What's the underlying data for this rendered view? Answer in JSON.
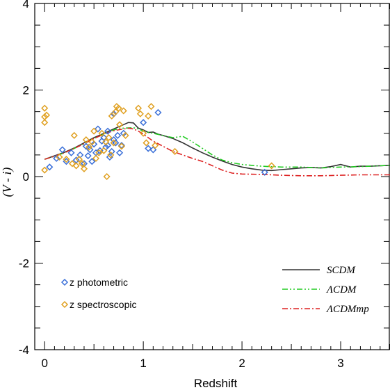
{
  "chart_data": {
    "type": "scatter",
    "title": "",
    "xlabel": "Redshift",
    "ylabel": "(V - i)",
    "xlim": [
      -0.1,
      3.5
    ],
    "ylim": [
      -4,
      4
    ],
    "x_ticks": [
      0,
      1,
      2,
      3
    ],
    "x_tick_labels": [
      "0",
      "1",
      "2",
      "3"
    ],
    "y_ticks": [
      -4,
      -2,
      0,
      2,
      4
    ],
    "y_tick_labels": [
      "-4",
      "-2",
      "0",
      "2",
      "4"
    ],
    "grid": false,
    "scatter_series": [
      {
        "name": "z photometric",
        "color": "#3a6fd8",
        "marker": "diamond-open",
        "points": [
          [
            0.05,
            0.22
          ],
          [
            0.12,
            0.42
          ],
          [
            0.18,
            0.62
          ],
          [
            0.22,
            0.35
          ],
          [
            0.27,
            0.55
          ],
          [
            0.32,
            0.38
          ],
          [
            0.36,
            0.5
          ],
          [
            0.4,
            0.3
          ],
          [
            0.42,
            0.7
          ],
          [
            0.44,
            0.48
          ],
          [
            0.46,
            0.62
          ],
          [
            0.48,
            0.35
          ],
          [
            0.5,
            0.75
          ],
          [
            0.52,
            0.55
          ],
          [
            0.54,
            1.1
          ],
          [
            0.56,
            0.6
          ],
          [
            0.58,
            0.82
          ],
          [
            0.6,
            0.9
          ],
          [
            0.62,
            0.68
          ],
          [
            0.64,
            0.72
          ],
          [
            0.66,
            0.45
          ],
          [
            0.68,
            0.58
          ],
          [
            0.7,
            0.85
          ],
          [
            0.72,
            0.78
          ],
          [
            0.74,
            0.95
          ],
          [
            0.76,
            0.55
          ],
          [
            0.78,
            0.72
          ],
          [
            0.8,
            1.0
          ],
          [
            0.7,
            1.45
          ],
          [
            1.0,
            1.25
          ],
          [
            1.05,
            0.65
          ],
          [
            1.1,
            0.62
          ],
          [
            1.15,
            1.48
          ],
          [
            0.64,
            1.05
          ],
          [
            2.23,
            0.1
          ]
        ]
      },
      {
        "name": "z spectroscopic",
        "color": "#e0a020",
        "marker": "diamond-open",
        "points": [
          [
            0.0,
            1.58
          ],
          [
            0.0,
            1.38
          ],
          [
            0.0,
            1.25
          ],
          [
            0.0,
            0.15
          ],
          [
            0.02,
            1.42
          ],
          [
            0.15,
            0.45
          ],
          [
            0.22,
            0.4
          ],
          [
            0.28,
            0.3
          ],
          [
            0.3,
            0.95
          ],
          [
            0.32,
            0.25
          ],
          [
            0.35,
            0.4
          ],
          [
            0.38,
            0.3
          ],
          [
            0.4,
            0.18
          ],
          [
            0.42,
            0.85
          ],
          [
            0.45,
            0.68
          ],
          [
            0.48,
            0.8
          ],
          [
            0.5,
            1.05
          ],
          [
            0.52,
            0.42
          ],
          [
            0.55,
            0.55
          ],
          [
            0.58,
            1.0
          ],
          [
            0.6,
            0.6
          ],
          [
            0.62,
            0.8
          ],
          [
            0.63,
            0.0
          ],
          [
            0.65,
            0.9
          ],
          [
            0.67,
            0.5
          ],
          [
            0.68,
            1.4
          ],
          [
            0.7,
            0.78
          ],
          [
            0.72,
            1.5
          ],
          [
            0.73,
            1.62
          ],
          [
            0.75,
            1.58
          ],
          [
            0.76,
            1.2
          ],
          [
            0.78,
            0.7
          ],
          [
            0.8,
            1.52
          ],
          [
            0.82,
            0.95
          ],
          [
            0.95,
            1.58
          ],
          [
            0.97,
            1.45
          ],
          [
            1.0,
            1.0
          ],
          [
            1.03,
            0.78
          ],
          [
            1.05,
            1.4
          ],
          [
            1.08,
            1.62
          ],
          [
            1.12,
            0.72
          ],
          [
            1.32,
            0.58
          ],
          [
            2.3,
            0.25
          ]
        ]
      }
    ],
    "line_series": [
      {
        "name": "SCDM",
        "color": "#333333",
        "dash": "solid",
        "x": [
          0.0,
          0.1,
          0.2,
          0.3,
          0.4,
          0.5,
          0.6,
          0.7,
          0.8,
          0.85,
          0.9,
          0.95,
          1.0,
          1.05,
          1.1,
          1.15,
          1.2,
          1.3,
          1.4,
          1.5,
          1.6,
          1.7,
          1.8,
          1.9,
          2.0,
          2.1,
          2.2,
          2.3,
          2.4,
          2.5,
          2.6,
          2.7,
          2.8,
          2.9,
          3.0,
          3.1,
          3.2,
          3.3,
          3.5
        ],
        "y": [
          0.4,
          0.48,
          0.56,
          0.66,
          0.78,
          0.9,
          1.0,
          1.1,
          1.2,
          1.25,
          1.24,
          1.12,
          1.08,
          1.02,
          1.03,
          0.98,
          0.95,
          0.88,
          0.78,
          0.66,
          0.55,
          0.45,
          0.36,
          0.28,
          0.22,
          0.18,
          0.15,
          0.14,
          0.16,
          0.18,
          0.2,
          0.21,
          0.2,
          0.23,
          0.28,
          0.22,
          0.24,
          0.24,
          0.26
        ]
      },
      {
        "name": "ΛCDM",
        "color": "#22cc22",
        "dash": "dash-dot-dot",
        "x": [
          0.0,
          0.1,
          0.2,
          0.3,
          0.4,
          0.5,
          0.6,
          0.7,
          0.8,
          0.9,
          0.95,
          1.0,
          1.1,
          1.2,
          1.3,
          1.4,
          1.5,
          1.6,
          1.7,
          1.8,
          1.9,
          2.0,
          2.2,
          2.4,
          2.6,
          2.8,
          3.0,
          3.2,
          3.5
        ],
        "y": [
          0.4,
          0.47,
          0.55,
          0.65,
          0.76,
          0.88,
          0.98,
          1.08,
          1.12,
          1.13,
          1.1,
          1.05,
          1.0,
          0.95,
          0.9,
          0.93,
          0.8,
          0.65,
          0.5,
          0.38,
          0.32,
          0.28,
          0.24,
          0.22,
          0.22,
          0.2,
          0.22,
          0.23,
          0.26
        ]
      },
      {
        "name": "ΛCDMmp",
        "color": "#dd2222",
        "dash": "dash-dot",
        "x": [
          0.0,
          0.1,
          0.2,
          0.3,
          0.4,
          0.5,
          0.6,
          0.7,
          0.8,
          0.85,
          0.9,
          0.95,
          1.0,
          1.1,
          1.2,
          1.3,
          1.4,
          1.5,
          1.6,
          1.7,
          1.8,
          1.9,
          2.0,
          2.2,
          2.4,
          2.6,
          2.8,
          3.0,
          3.2,
          3.5
        ],
        "y": [
          0.4,
          0.47,
          0.55,
          0.65,
          0.76,
          0.88,
          0.98,
          1.06,
          1.1,
          1.12,
          1.1,
          1.05,
          0.98,
          0.82,
          0.7,
          0.58,
          0.5,
          0.42,
          0.35,
          0.25,
          0.15,
          0.08,
          0.06,
          0.05,
          0.03,
          0.02,
          0.02,
          0.03,
          0.04,
          0.04
        ]
      }
    ],
    "legends": {
      "points_placement": "bottom-left",
      "lines_placement": "bottom-right"
    }
  },
  "legend_labels": {
    "photometric": "z photometric",
    "spectroscopic": "z spectroscopic",
    "scdm": "SCDM",
    "lcdm": "ΛCDM",
    "lcdmmp": "ΛCDMmp"
  },
  "axes_text": {
    "xlabel": "Redshift",
    "ylabel": "(V - i)"
  }
}
